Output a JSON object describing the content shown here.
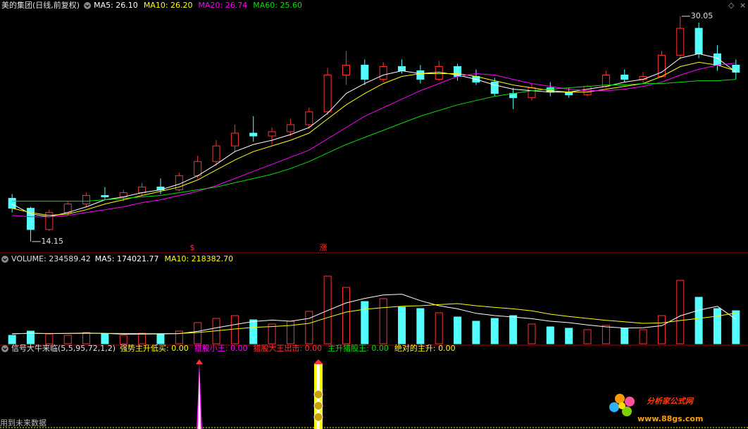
{
  "chart_data": [
    {
      "type": "candlestick",
      "title": "美的集团(日线,前复权)",
      "open": [
        17.2,
        16.5,
        15.0,
        16.2,
        16.8,
        17.4,
        17.3,
        17.6,
        18.0,
        17.8,
        18.8,
        19.8,
        20.9,
        21.8,
        21.6,
        21.9,
        22.4,
        23.3,
        25.9,
        26.6,
        25.6,
        26.5,
        26.2,
        25.6,
        26.5,
        25.8,
        25.4,
        24.6,
        24.3,
        25.0,
        24.7,
        24.5,
        25.1,
        25.9,
        25.6,
        25.8,
        27.3,
        29.2,
        27.4,
        26.6
      ],
      "high": [
        17.5,
        16.6,
        16.4,
        17.0,
        17.6,
        18.0,
        17.8,
        18.3,
        18.6,
        19.0,
        20.2,
        21.3,
        22.4,
        23.0,
        22.2,
        22.8,
        23.6,
        26.4,
        27.6,
        27.0,
        26.8,
        27.0,
        26.6,
        26.9,
        26.7,
        26.3,
        25.7,
        25.0,
        25.3,
        25.4,
        25.0,
        25.2,
        26.2,
        26.3,
        26.1,
        27.6,
        30.05,
        29.6,
        28.0,
        27.0
      ],
      "low": [
        16.2,
        14.15,
        14.9,
        16.0,
        16.6,
        17.1,
        17.0,
        17.4,
        17.5,
        17.7,
        18.6,
        19.5,
        20.5,
        21.2,
        21.0,
        21.6,
        22.1,
        23.1,
        25.2,
        25.2,
        25.4,
        26.0,
        25.3,
        25.5,
        25.5,
        25.2,
        24.4,
        23.5,
        24.1,
        24.4,
        24.3,
        24.4,
        25.0,
        25.4,
        25.3,
        25.7,
        27.0,
        27.1,
        26.2,
        25.6
      ],
      "close": [
        16.5,
        15.0,
        16.2,
        16.8,
        17.4,
        17.3,
        17.6,
        18.0,
        17.8,
        18.8,
        19.8,
        20.9,
        21.8,
        21.6,
        21.9,
        22.4,
        23.3,
        25.9,
        26.6,
        25.6,
        26.5,
        26.2,
        25.6,
        26.5,
        25.8,
        25.4,
        24.6,
        24.3,
        25.0,
        24.7,
        24.5,
        25.1,
        25.9,
        25.6,
        25.8,
        27.3,
        29.2,
        27.4,
        26.6,
        26.1
      ],
      "up_color": "#ff3232",
      "down_color": "#54ffff",
      "ylim": [
        13.5,
        30.3
      ],
      "annotations": [
        {
          "label": "30.05",
          "value": 30.05
        },
        {
          "label": "14.15",
          "value": 14.15
        }
      ],
      "series": [
        {
          "name": "MA5: 26.10",
          "color": "#ffffff",
          "values": [
            16.8,
            16.1,
            15.9,
            16.2,
            16.6,
            17.1,
            17.3,
            17.6,
            17.8,
            18.2,
            18.8,
            19.6,
            20.5,
            21.0,
            21.3,
            21.7,
            22.2,
            23.2,
            24.6,
            25.3,
            25.9,
            26.2,
            26.0,
            26.1,
            25.9,
            25.6,
            25.2,
            24.9,
            24.8,
            24.7,
            24.7,
            24.9,
            25.1,
            25.4,
            25.6,
            26.1,
            27.1,
            27.4,
            27.1,
            26.1
          ]
        },
        {
          "name": "MA10: 26.20",
          "color": "#ffff00",
          "values": [
            16.5,
            16.2,
            16.0,
            16.1,
            16.4,
            16.8,
            17.1,
            17.4,
            17.7,
            18.0,
            18.5,
            19.2,
            19.9,
            20.5,
            20.9,
            21.3,
            21.8,
            22.8,
            23.8,
            24.6,
            25.3,
            25.8,
            26.0,
            26.0,
            26.0,
            25.8,
            25.5,
            25.2,
            25.0,
            24.8,
            24.7,
            24.7,
            24.9,
            25.1,
            25.3,
            25.8,
            26.5,
            26.8,
            26.6,
            26.2
          ]
        },
        {
          "name": "MA20: 26.74",
          "color": "#ff00ff",
          "values": [
            16.0,
            15.9,
            15.9,
            16.0,
            16.2,
            16.4,
            16.6,
            16.9,
            17.1,
            17.4,
            17.7,
            18.1,
            18.6,
            19.1,
            19.6,
            20.1,
            20.6,
            21.4,
            22.2,
            23.0,
            23.6,
            24.2,
            24.8,
            25.3,
            25.8,
            26.0,
            25.9,
            25.6,
            25.3,
            25.1,
            24.9,
            24.8,
            24.8,
            24.9,
            25.1,
            25.4,
            25.9,
            26.3,
            26.6,
            26.74
          ]
        },
        {
          "name": "MA60: 25.60",
          "color": "#00e000",
          "values": [
            17.0,
            17.0,
            17.0,
            17.0,
            17.0,
            17.1,
            17.2,
            17.3,
            17.4,
            17.6,
            17.8,
            18.0,
            18.3,
            18.6,
            18.9,
            19.3,
            19.8,
            20.4,
            21.0,
            21.5,
            22.0,
            22.5,
            23.0,
            23.4,
            23.8,
            24.1,
            24.4,
            24.6,
            24.8,
            24.9,
            25.0,
            25.1,
            25.2,
            25.2,
            25.3,
            25.3,
            25.4,
            25.5,
            25.5,
            25.6
          ]
        }
      ]
    },
    {
      "type": "bar",
      "title": "VOLUME: 234589.42",
      "ylim": [
        0,
        550000
      ],
      "values": [
        60000,
        90000,
        70000,
        60000,
        80000,
        70000,
        60000,
        75000,
        65000,
        90000,
        150000,
        180000,
        200000,
        170000,
        140000,
        160000,
        230000,
        480000,
        400000,
        300000,
        320000,
        260000,
        250000,
        220000,
        190000,
        160000,
        180000,
        200000,
        140000,
        120000,
        110000,
        100000,
        130000,
        110000,
        100000,
        200000,
        450000,
        330000,
        250000,
        234589.42
      ],
      "series": [
        {
          "name": "MA5: 174021.77",
          "color": "#ffffff",
          "values": [
            70000,
            75000,
            72000,
            74000,
            76000,
            74000,
            68000,
            69000,
            70000,
            72000,
            88000,
            113000,
            136000,
            158000,
            168000,
            160000,
            180000,
            236000,
            290000,
            322000,
            346000,
            352000,
            306000,
            270000,
            248000,
            216000,
            200000,
            190000,
            178000,
            160000,
            150000,
            134000,
            120000,
            112000,
            114000,
            128000,
            198000,
            238000,
            266000,
            174021.77
          ]
        },
        {
          "name": "MA10: 218382.70",
          "color": "#ffff00",
          "values": [
            72000,
            73000,
            73000,
            73000,
            74000,
            74000,
            73000,
            72000,
            72000,
            73000,
            80000,
            92000,
            105000,
            116000,
            122000,
            130000,
            145000,
            186000,
            225000,
            245000,
            256000,
            266000,
            270000,
            278000,
            285000,
            270000,
            258000,
            248000,
            234000,
            210000,
            194000,
            180000,
            166000,
            156000,
            145000,
            148000,
            165000,
            180000,
            196000,
            218382.7
          ]
        }
      ]
    },
    {
      "type": "indicator",
      "title": "信号大牛来临(5,5,95,72,1,2)",
      "series": [
        {
          "name": "强势主升低买: 0.00",
          "color": "#ffff00"
        },
        {
          "name": "猎股小王: 0.00",
          "color": "#ff00ff"
        },
        {
          "name": "猎股大王出击: 0.00",
          "color": "#ff3232"
        },
        {
          "name": "主升猎股王: 0.00",
          "color": "#00e000"
        },
        {
          "name": "绝对的主升: 0.00",
          "color": "#ffff00"
        }
      ]
    }
  ],
  "event_markers": [
    "$",
    "涨"
  ],
  "footer_note": "用到未来数据",
  "watermark": {
    "title": "分析家公式网",
    "url": "www.88gs.com"
  }
}
